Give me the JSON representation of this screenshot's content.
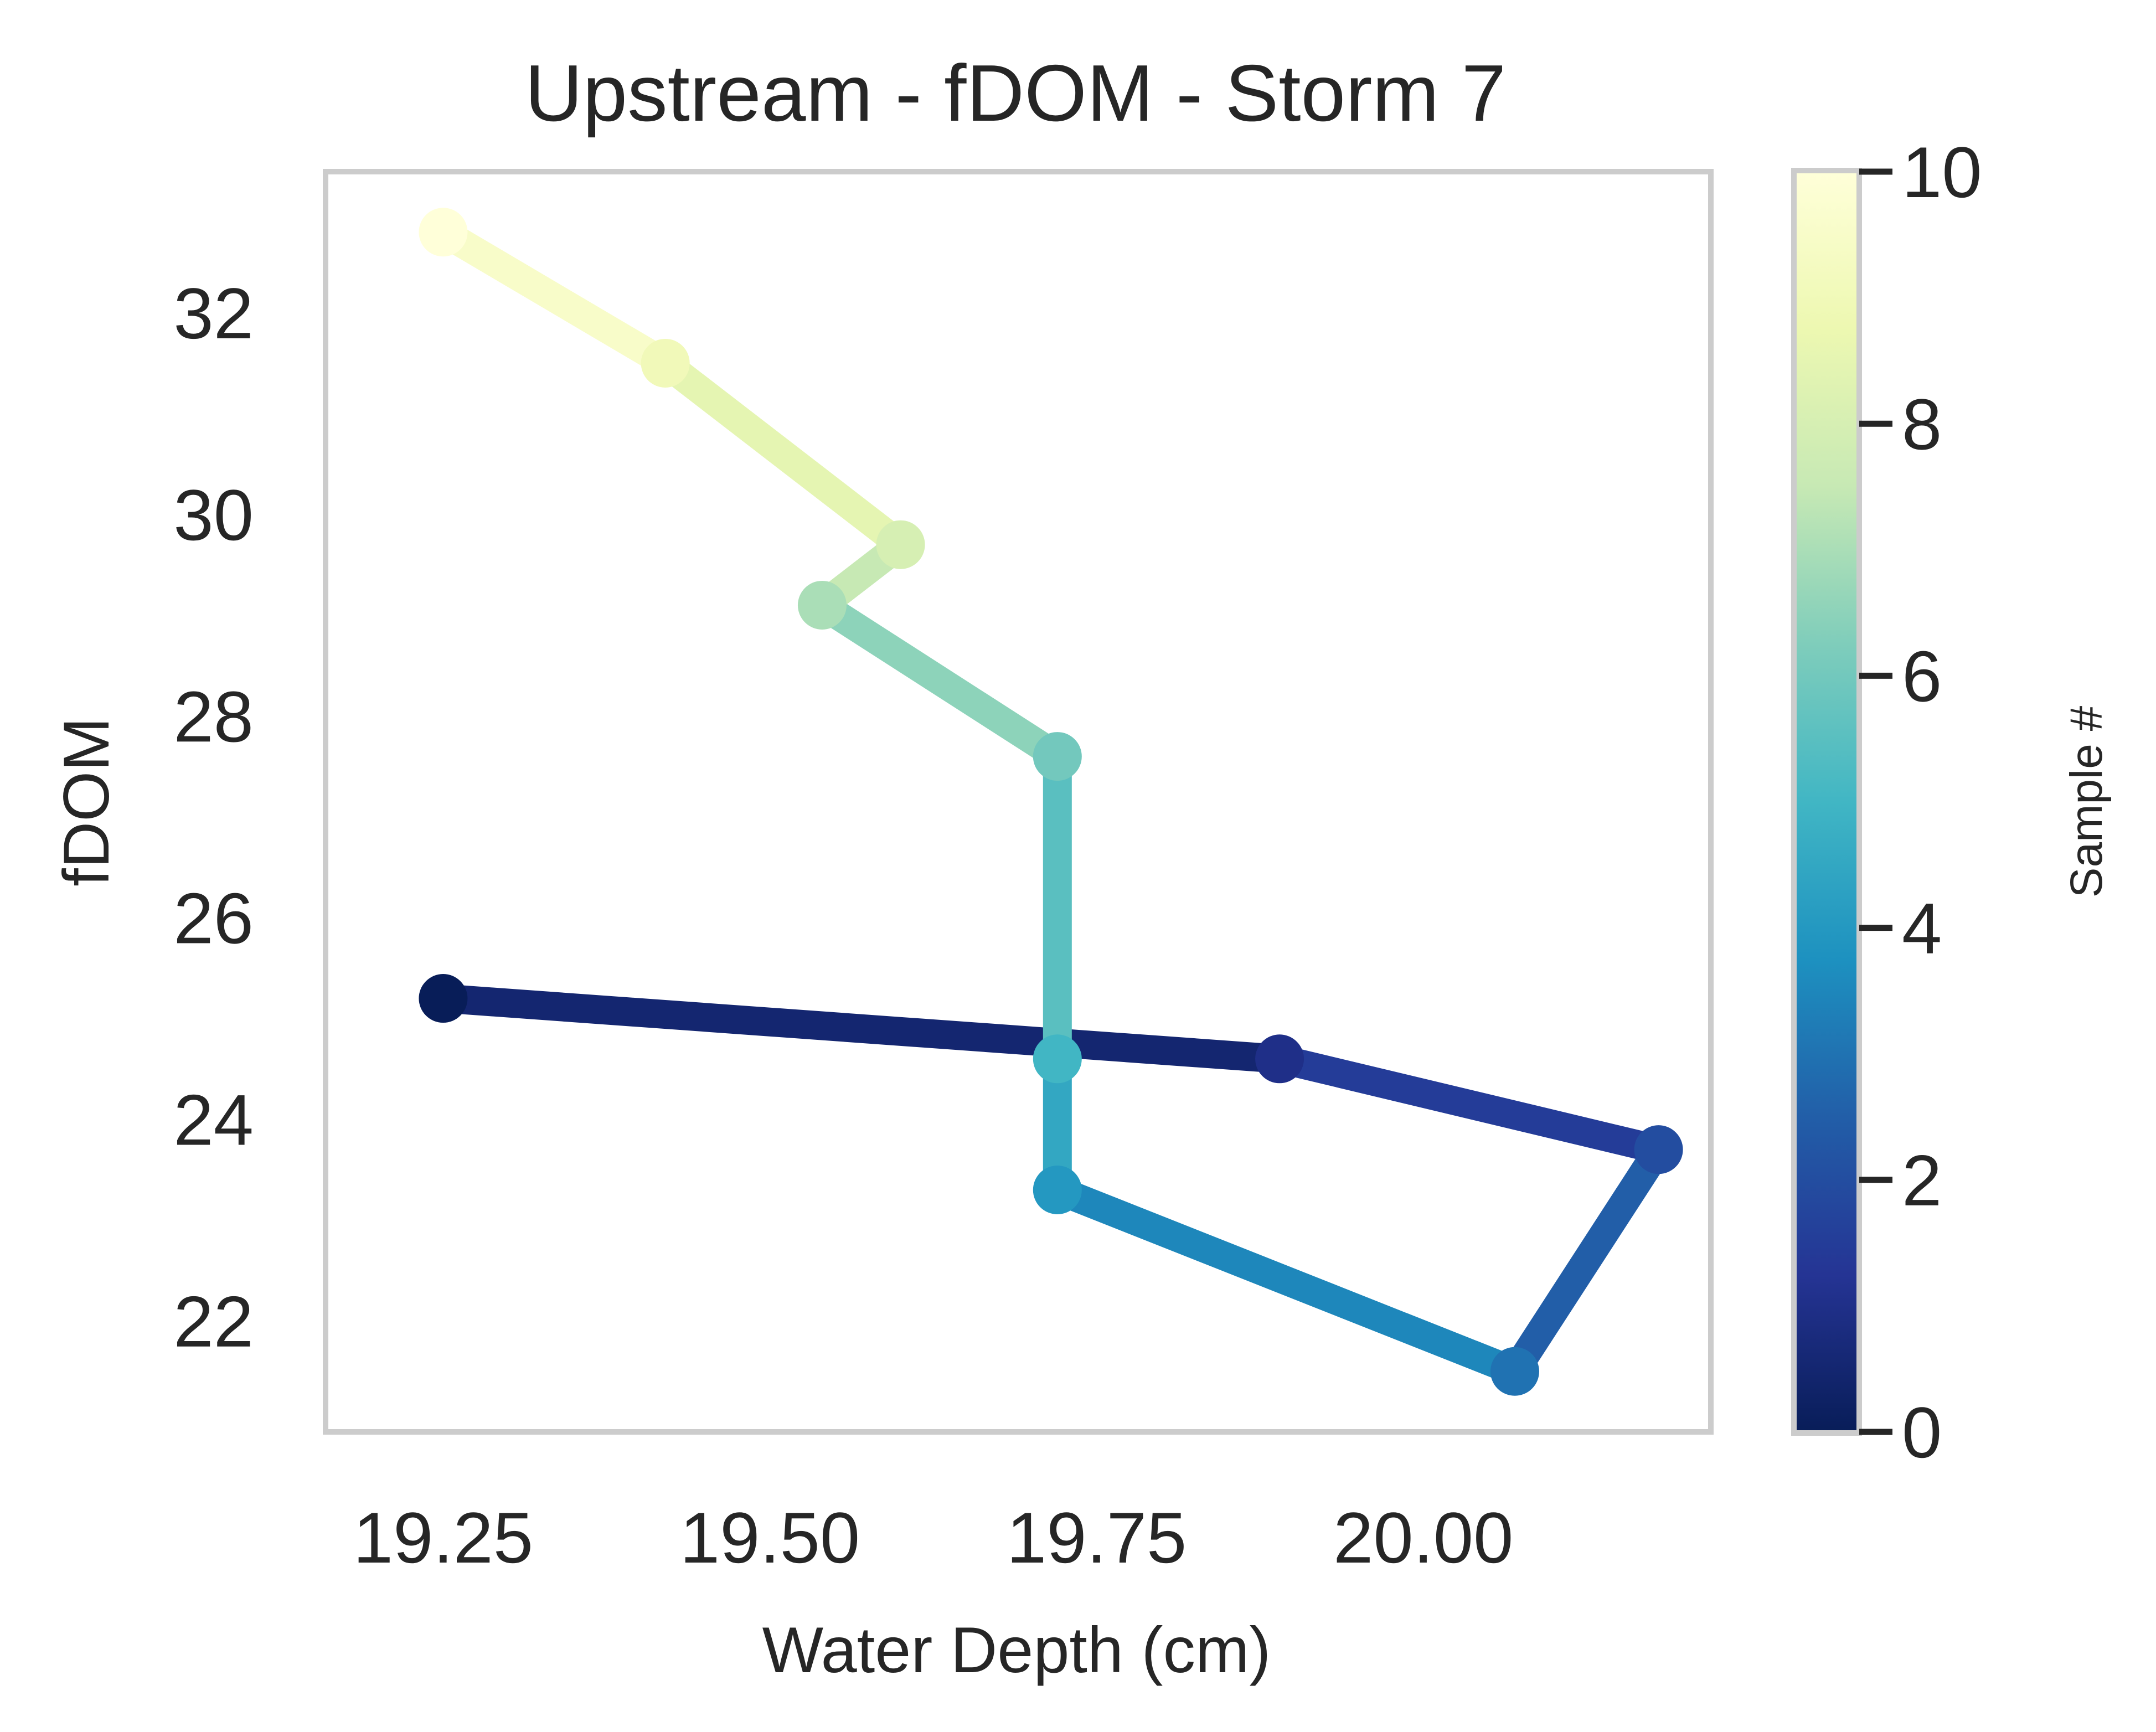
{
  "chart_data": {
    "type": "line",
    "title": "Upstream - fDOM - Storm 7",
    "xlabel": "Water Depth (cm)",
    "ylabel": "fDOM",
    "xlim": [
      19.16,
      20.22
    ],
    "ylim": [
      20.9,
      33.4
    ],
    "xticks": [
      "19.25",
      "19.50",
      "19.75",
      "20.00"
    ],
    "yticks": [
      "22",
      "24",
      "26",
      "28",
      "30",
      "32"
    ],
    "grid": false,
    "colormap": "YlGnBu_r",
    "colorbar": {
      "label": "Sample #",
      "range": [
        0,
        10
      ],
      "ticks": [
        "0",
        "2",
        "4",
        "6",
        "8",
        "10"
      ],
      "stops": [
        {
          "v": 0,
          "color": "#081d58"
        },
        {
          "v": 1.25,
          "color": "#253494"
        },
        {
          "v": 2.5,
          "color": "#225ea8"
        },
        {
          "v": 3.75,
          "color": "#1d91c0"
        },
        {
          "v": 5,
          "color": "#41b6c4"
        },
        {
          "v": 6.25,
          "color": "#7fcdbb"
        },
        {
          "v": 7.5,
          "color": "#c7e9b4"
        },
        {
          "v": 8.75,
          "color": "#edf8b1"
        },
        {
          "v": 10,
          "color": "#ffffd9"
        }
      ]
    },
    "series": [
      {
        "points": [
          {
            "sample": 0,
            "x": 19.25,
            "y": 25.2
          },
          {
            "sample": 1,
            "x": 19.89,
            "y": 24.6
          },
          {
            "sample": 2,
            "x": 20.18,
            "y": 23.7
          },
          {
            "sample": 3,
            "x": 20.07,
            "y": 21.5
          },
          {
            "sample": 4,
            "x": 19.72,
            "y": 23.3
          },
          {
            "sample": 5,
            "x": 19.72,
            "y": 24.6
          },
          {
            "sample": 6,
            "x": 19.72,
            "y": 27.6
          },
          {
            "sample": 7,
            "x": 19.54,
            "y": 29.1
          },
          {
            "sample": 8,
            "x": 19.6,
            "y": 29.7
          },
          {
            "sample": 9,
            "x": 19.42,
            "y": 31.5
          },
          {
            "sample": 10,
            "x": 19.25,
            "y": 32.8
          }
        ]
      }
    ]
  }
}
